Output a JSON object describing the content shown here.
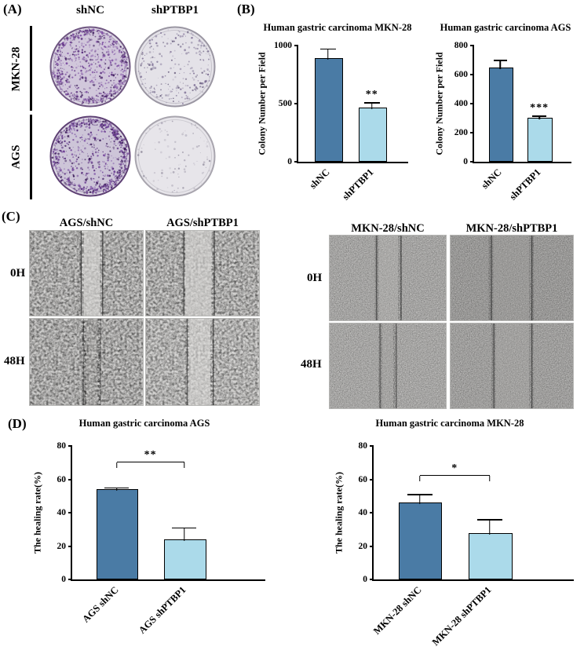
{
  "panel_a": {
    "label": "(A)",
    "col_headers": [
      "shNC",
      "shPTBP1"
    ],
    "rows": [
      {
        "label": "MKN-28"
      },
      {
        "label": "AGS"
      }
    ],
    "dishes": [
      {
        "name": "MKN-28 shNC",
        "stain": "dense purple colonies"
      },
      {
        "name": "MKN-28 shPTBP1",
        "stain": "sparse faint colonies"
      },
      {
        "name": "AGS shNC",
        "stain": "dense purple colonies, edge-heavy"
      },
      {
        "name": "AGS shPTBP1",
        "stain": "very sparse faint colonies"
      }
    ]
  },
  "panel_b": {
    "label": "(B)"
  },
  "panel_c": {
    "label": "(C)",
    "left_group": {
      "col_headers": [
        "AGS/shNC",
        "AGS/shPTBP1"
      ],
      "row_labels": [
        "0H",
        "48H"
      ]
    },
    "right_group": {
      "col_headers": [
        "MKN-28/shNC",
        "MKN-28/shPTBP1"
      ],
      "row_labels": [
        "0H",
        "48H"
      ]
    }
  },
  "panel_d": {
    "label": "(D)"
  },
  "colors": {
    "bar_dark": "#4a7ba5",
    "bar_light": "#abdaea"
  },
  "chart_data": [
    {
      "id": "b_mkn28",
      "type": "bar",
      "title": "Human gastric carcinoma MKN-28",
      "ylabel": "Colony Number per Field",
      "ylim": [
        0,
        1000
      ],
      "yticks": [
        0,
        500,
        1000
      ],
      "categories": [
        "shNC",
        "shPTBP1"
      ],
      "values": [
        880,
        450
      ],
      "errors": [
        90,
        60
      ],
      "bar_colors": [
        "#4a7ba5",
        "#abdaea"
      ],
      "significance": {
        "text": "**",
        "above_bar": 1
      },
      "bar_centers_pct": [
        27,
        67
      ],
      "bar_width_pct": 24,
      "grid": false
    },
    {
      "id": "b_ags",
      "type": "bar",
      "title": "Human gastric carcinoma AGS",
      "ylabel": "Colony Number per Field",
      "ylim": [
        0,
        800
      ],
      "yticks": [
        0,
        200,
        400,
        600,
        800
      ],
      "categories": [
        "shNC",
        "shPTBP1"
      ],
      "values": [
        640,
        290
      ],
      "errors": [
        60,
        25
      ],
      "bar_colors": [
        "#4a7ba5",
        "#abdaea"
      ],
      "significance": {
        "text": "***",
        "above_bar": 1
      },
      "bar_centers_pct": [
        27,
        67
      ],
      "bar_width_pct": 24,
      "grid": false
    },
    {
      "id": "d_ags",
      "type": "bar",
      "title": "Human gastric carcinoma AGS",
      "ylabel": "The healing rate(%)",
      "ylim": [
        0,
        80
      ],
      "yticks": [
        0,
        20,
        40,
        60,
        80
      ],
      "categories": [
        "AGS shNC",
        "AGS shPTBP1"
      ],
      "values": [
        53,
        23
      ],
      "errors": [
        2,
        8
      ],
      "bar_colors": [
        "#4a7ba5",
        "#abdaea"
      ],
      "significance": {
        "text": "**",
        "bracket_y": 70
      },
      "bar_centers_pct": [
        23,
        58
      ],
      "bar_width_pct": 21,
      "grid": false
    },
    {
      "id": "d_mkn28",
      "type": "bar",
      "title": "Human gastric carcinoma MKN-28",
      "ylabel": "The healing rate(%)",
      "ylim": [
        0,
        80
      ],
      "yticks": [
        0,
        20,
        40,
        60,
        80
      ],
      "categories": [
        "MKN-28 shNC",
        "MKN-28 shPTBP1"
      ],
      "values": [
        45,
        27
      ],
      "errors": [
        6,
        9
      ],
      "bar_colors": [
        "#4a7ba5",
        "#abdaea"
      ],
      "significance": {
        "text": "*",
        "bracket_y": 62
      },
      "bar_centers_pct": [
        23,
        58
      ],
      "bar_width_pct": 21,
      "grid": false
    }
  ]
}
